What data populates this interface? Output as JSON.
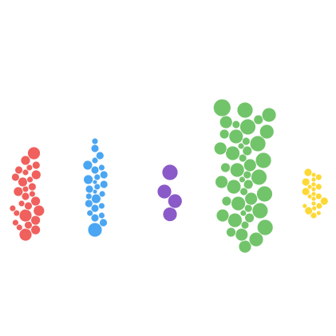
{
  "chart_data": {
    "type": "scatter",
    "subtype": "beeswarm",
    "title": "",
    "xlabel": "",
    "ylabel": "",
    "grid": false,
    "legend": "none",
    "series": [
      {
        "color": "#f0605d",
        "values": [
          {
            "y": 2.6,
            "r": 8
          },
          {
            "y": 2.3,
            "r": 6
          },
          {
            "y": 2.1,
            "r": 5
          },
          {
            "y": 1.9,
            "r": 5
          },
          {
            "y": 1.7,
            "r": 6
          },
          {
            "y": 1.6,
            "r": 5
          },
          {
            "y": 1.4,
            "r": 6
          },
          {
            "y": 1.2,
            "r": 5
          },
          {
            "y": 1.0,
            "r": 6
          },
          {
            "y": 0.8,
            "r": 5
          },
          {
            "y": 0.6,
            "r": 6
          },
          {
            "y": 0.4,
            "r": 5
          },
          {
            "y": 0.2,
            "r": 7
          },
          {
            "y": 0.0,
            "r": 8
          },
          {
            "y": -0.2,
            "r": 6
          },
          {
            "y": -0.4,
            "r": 5
          },
          {
            "y": -0.6,
            "r": 6
          },
          {
            "y": -0.8,
            "r": 8
          },
          {
            "y": 2.0,
            "r": 4
          },
          {
            "y": 1.5,
            "r": 4
          },
          {
            "y": 1.1,
            "r": 4
          },
          {
            "y": 0.5,
            "r": 4
          },
          {
            "y": 0.1,
            "r": 4
          },
          {
            "y": -0.3,
            "r": 4
          },
          {
            "y": 1.8,
            "r": 4
          },
          {
            "y": 0.9,
            "r": 4
          },
          {
            "y": 0.3,
            "r": 4
          },
          {
            "y": -0.5,
            "r": 4
          }
        ]
      },
      {
        "color": "#4aa6f2",
        "values": [
          {
            "y": 3.1,
            "r": 4
          },
          {
            "y": 2.8,
            "r": 5
          },
          {
            "y": 2.5,
            "r": 5
          },
          {
            "y": 2.3,
            "r": 4
          },
          {
            "y": 2.1,
            "r": 6
          },
          {
            "y": 1.9,
            "r": 5
          },
          {
            "y": 1.7,
            "r": 5
          },
          {
            "y": 1.5,
            "r": 6
          },
          {
            "y": 1.3,
            "r": 5
          },
          {
            "y": 1.1,
            "r": 5
          },
          {
            "y": 0.9,
            "r": 4
          },
          {
            "y": 0.7,
            "r": 6
          },
          {
            "y": 0.5,
            "r": 5
          },
          {
            "y": 0.3,
            "r": 5
          },
          {
            "y": 0.1,
            "r": 4
          },
          {
            "y": -0.1,
            "r": 5
          },
          {
            "y": -0.3,
            "r": 5
          },
          {
            "y": -0.6,
            "r": 9
          },
          {
            "y": 2.0,
            "r": 4
          },
          {
            "y": 1.6,
            "r": 4
          },
          {
            "y": 1.2,
            "r": 4
          },
          {
            "y": 0.8,
            "r": 4
          },
          {
            "y": 0.4,
            "r": 4
          },
          {
            "y": 0.0,
            "r": 4
          },
          {
            "y": 1.4,
            "r": 3
          },
          {
            "y": 1.0,
            "r": 3
          }
        ]
      },
      {
        "color": "#8a5ac8",
        "values": [
          {
            "y": 1.8,
            "r": 10
          },
          {
            "y": 1.0,
            "r": 9
          },
          {
            "y": 0.6,
            "r": 9
          },
          {
            "y": 0.05,
            "r": 9
          }
        ]
      },
      {
        "color": "#72c46a",
        "values": [
          {
            "y": 4.5,
            "r": 11
          },
          {
            "y": 4.4,
            "r": 10
          },
          {
            "y": 4.2,
            "r": 9
          },
          {
            "y": 3.9,
            "r": 8
          },
          {
            "y": 3.7,
            "r": 10
          },
          {
            "y": 3.5,
            "r": 9
          },
          {
            "y": 3.3,
            "r": 9
          },
          {
            "y": 3.0,
            "r": 10
          },
          {
            "y": 2.8,
            "r": 8
          },
          {
            "y": 2.6,
            "r": 9
          },
          {
            "y": 2.3,
            "r": 10
          },
          {
            "y": 2.1,
            "r": 8
          },
          {
            "y": 1.9,
            "r": 9
          },
          {
            "y": 1.6,
            "r": 10
          },
          {
            "y": 1.4,
            "r": 8
          },
          {
            "y": 1.2,
            "r": 9
          },
          {
            "y": 0.9,
            "r": 10
          },
          {
            "y": 0.7,
            "r": 8
          },
          {
            "y": 0.5,
            "r": 9
          },
          {
            "y": 0.2,
            "r": 10
          },
          {
            "y": 0.0,
            "r": 8
          },
          {
            "y": -0.2,
            "r": 9
          },
          {
            "y": -0.5,
            "r": 10
          },
          {
            "y": -0.8,
            "r": 8
          },
          {
            "y": -1.0,
            "r": 9
          },
          {
            "y": -1.3,
            "r": 8
          },
          {
            "y": 4.0,
            "r": 6
          },
          {
            "y": 3.4,
            "r": 6
          },
          {
            "y": 2.7,
            "r": 6
          },
          {
            "y": 2.0,
            "r": 6
          },
          {
            "y": 1.3,
            "r": 6
          },
          {
            "y": 0.6,
            "r": 6
          },
          {
            "y": -0.1,
            "r": 6
          },
          {
            "y": -0.7,
            "r": 6
          },
          {
            "y": 3.8,
            "r": 5
          },
          {
            "y": 3.1,
            "r": 5
          },
          {
            "y": 2.4,
            "r": 5
          },
          {
            "y": 1.7,
            "r": 5
          },
          {
            "y": 1.0,
            "r": 5
          },
          {
            "y": 0.3,
            "r": 5
          },
          {
            "y": -0.4,
            "r": 5
          },
          {
            "y": 2.9,
            "r": 4
          },
          {
            "y": 1.5,
            "r": 4
          },
          {
            "y": 0.1,
            "r": 4
          }
        ]
      },
      {
        "color": "#fdd835",
        "values": [
          {
            "y": 1.8,
            "r": 5
          },
          {
            "y": 1.6,
            "r": 4
          },
          {
            "y": 1.4,
            "r": 5
          },
          {
            "y": 1.2,
            "r": 4
          },
          {
            "y": 1.0,
            "r": 5
          },
          {
            "y": 0.8,
            "r": 4
          },
          {
            "y": 0.6,
            "r": 5
          },
          {
            "y": 0.4,
            "r": 4
          },
          {
            "y": 0.2,
            "r": 5
          },
          {
            "y": 0.0,
            "r": 4
          },
          {
            "y": 1.7,
            "r": 3
          },
          {
            "y": 1.5,
            "r": 3
          },
          {
            "y": 1.3,
            "r": 3
          },
          {
            "y": 1.1,
            "r": 3
          },
          {
            "y": 0.9,
            "r": 3
          },
          {
            "y": 0.7,
            "r": 3
          },
          {
            "y": 0.5,
            "r": 3
          },
          {
            "y": 0.3,
            "r": 3
          },
          {
            "y": 0.1,
            "r": 3
          },
          {
            "y": 1.2,
            "r": 3
          },
          {
            "y": 0.8,
            "r": 3
          },
          {
            "y": 0.4,
            "r": 3
          }
        ]
      }
    ],
    "ylim": [
      -2,
      6
    ]
  }
}
